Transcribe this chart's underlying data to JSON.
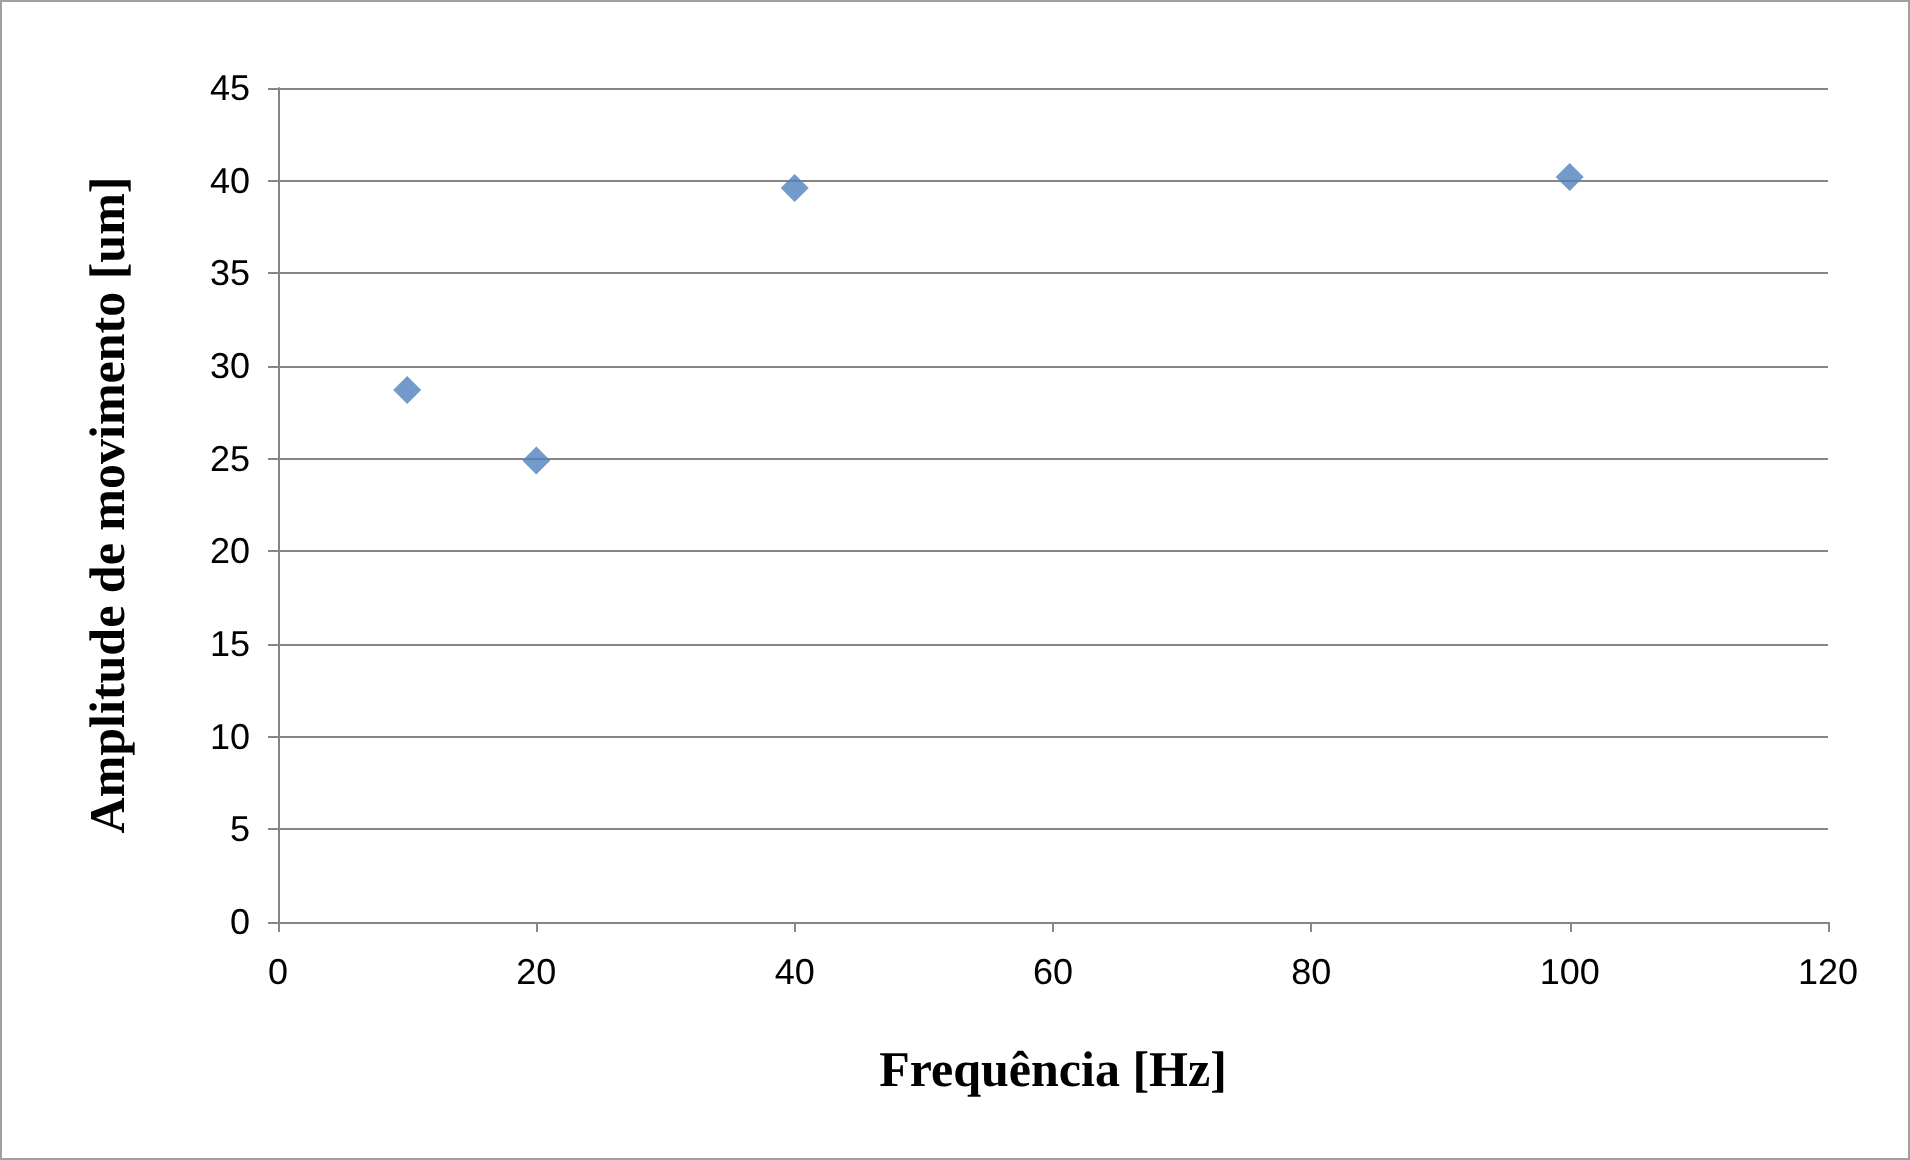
{
  "chart_data": {
    "type": "scatter",
    "xlabel": "Frequência [Hz]",
    "ylabel": "Amplitude de movimento [um]",
    "x": [
      10,
      20,
      40,
      100
    ],
    "series": [
      {
        "color": "#4f81bd",
        "values": [
          28.7,
          24.9,
          39.6,
          40.2
        ]
      }
    ],
    "xlim": [
      0,
      120
    ],
    "xticks": [
      0,
      20,
      40,
      60,
      80,
      100,
      120
    ],
    "ylim": [
      0,
      45
    ],
    "yticks": [
      0,
      5,
      10,
      15,
      20,
      25,
      30,
      35,
      40,
      45
    ],
    "grid": "y",
    "marker": "diamond"
  }
}
